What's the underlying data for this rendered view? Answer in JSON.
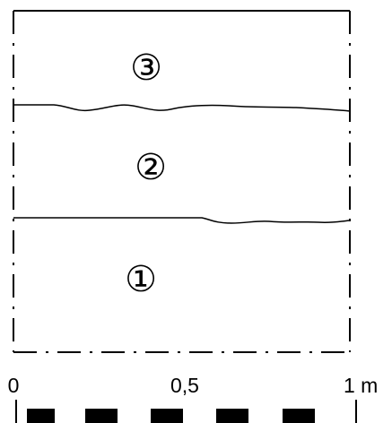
{
  "layers": [
    {
      "label": "③"
    },
    {
      "label": "②"
    },
    {
      "label": "①"
    }
  ],
  "scale": {
    "start_label": "0",
    "mid_label": "0,5",
    "end_label": "1 m"
  },
  "colors": {
    "ink": "#000000",
    "background": "#ffffff"
  }
}
